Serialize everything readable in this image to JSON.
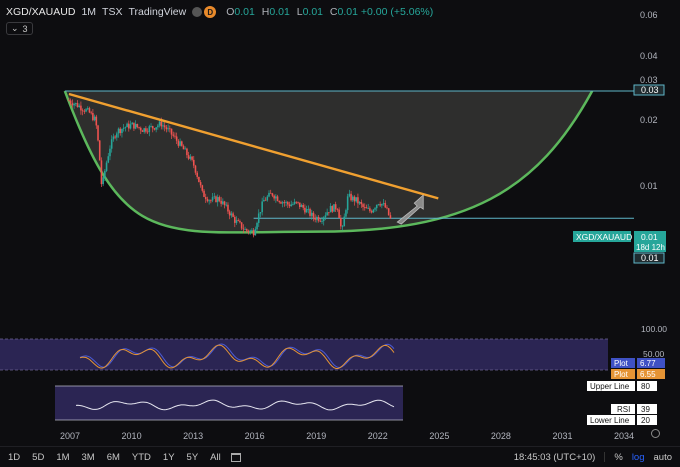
{
  "header": {
    "symbol": "XGD/XAUAUD",
    "interval": "1M",
    "exchange": "TSX",
    "source": "TradingView",
    "badge": "D",
    "ohlc": {
      "o": "0.01",
      "h": "0.01",
      "l": "0.01",
      "c": "0.01",
      "change": "+0.00 (+5.06%)"
    },
    "o_label": "O",
    "h_label": "H",
    "l_label": "L",
    "c_label": "C"
  },
  "indicators_toggle": {
    "chevron": "chevron-down-icon",
    "count": "3"
  },
  "price_axis": {
    "ticks": [
      "0.06",
      "0.04",
      "0.03",
      "0.02",
      "0.01"
    ],
    "tags": {
      "resistance": "0.03",
      "symbol": "XGD/XAUAUD",
      "last_price": "0.01",
      "countdown": "18d 12h",
      "support": "0.01"
    }
  },
  "rsi_axis": {
    "ticks": [
      "100.00",
      "50.00"
    ],
    "plot1_label": "Plot",
    "plot1_value": "6.77",
    "plot2_label": "Plot",
    "plot2_value": "6.55",
    "upper_label": "Upper Line",
    "upper_value": "80",
    "rsi_label": "RSI",
    "rsi_value": "39",
    "lower_label": "Lower Line",
    "lower_value": "20"
  },
  "time_axis": {
    "ticks": [
      {
        "label": "2007",
        "year": 2007
      },
      {
        "label": "2010",
        "year": 2010
      },
      {
        "label": "2013",
        "year": 2013
      },
      {
        "label": "2016",
        "year": 2016
      },
      {
        "label": "2019",
        "year": 2019
      },
      {
        "label": "2022",
        "year": 2022
      },
      {
        "label": "2025",
        "year": 2025
      },
      {
        "label": "2028",
        "year": 2028
      },
      {
        "label": "2031",
        "year": 2031
      },
      {
        "label": "2034",
        "year": 2034
      }
    ]
  },
  "bottom_bar": {
    "timeframes": [
      "1D",
      "5D",
      "1M",
      "3M",
      "6M",
      "YTD",
      "1Y",
      "5Y",
      "All"
    ],
    "calendar_icon": "calendar-icon",
    "clock": "18:45:03 (UTC+10)",
    "percent": "%",
    "log": "log",
    "auto": "auto"
  },
  "colors": {
    "background": "#0d0d10",
    "cup": "#5cb85c",
    "trendline": "#f0a030",
    "level_line": "#5fb6c9",
    "arrow": "#8c8c8c",
    "candle_up": "#26a69a",
    "candle_down": "#ef5350",
    "osc_panel": "#2b2553",
    "rsi_line": "#d0d0e0",
    "plot1": "#3f51c4",
    "plot2": "#e59435"
  },
  "chart_data": {
    "type": "candlestick",
    "timeframe": "1M",
    "y_scale": "log",
    "y_ticks": [
      0.06,
      0.04,
      0.03,
      0.02,
      0.01
    ],
    "x_ticks": [
      2007,
      2010,
      2013,
      2016,
      2019,
      2022,
      2025,
      2028,
      2031,
      2034
    ],
    "price_path": [
      [
        2006.9,
        0.027
      ],
      [
        2007.2,
        0.026
      ],
      [
        2007.5,
        0.025
      ],
      [
        2007.9,
        0.0235
      ],
      [
        2008.2,
        0.0215
      ],
      [
        2008.5,
        0.01
      ],
      [
        2008.9,
        0.016
      ],
      [
        2009.2,
        0.019
      ],
      [
        2009.6,
        0.02
      ],
      [
        2010.0,
        0.0205
      ],
      [
        2010.5,
        0.0195
      ],
      [
        2011.0,
        0.02
      ],
      [
        2011.4,
        0.0208
      ],
      [
        2011.8,
        0.019
      ],
      [
        2012.2,
        0.017
      ],
      [
        2012.6,
        0.015
      ],
      [
        2013.0,
        0.013
      ],
      [
        2013.4,
        0.0095
      ],
      [
        2013.8,
        0.0088
      ],
      [
        2014.2,
        0.009
      ],
      [
        2014.6,
        0.008
      ],
      [
        2015.0,
        0.007
      ],
      [
        2015.5,
        0.0063
      ],
      [
        2015.9,
        0.0062
      ],
      [
        2016.4,
        0.0088
      ],
      [
        2016.8,
        0.0095
      ],
      [
        2017.2,
        0.0088
      ],
      [
        2017.6,
        0.0084
      ],
      [
        2018.0,
        0.0085
      ],
      [
        2018.4,
        0.008
      ],
      [
        2018.8,
        0.0073
      ],
      [
        2019.2,
        0.0072
      ],
      [
        2019.6,
        0.008
      ],
      [
        2020.0,
        0.0082
      ],
      [
        2020.2,
        0.006
      ],
      [
        2020.5,
        0.0092
      ],
      [
        2020.9,
        0.0088
      ],
      [
        2021.3,
        0.008
      ],
      [
        2021.6,
        0.0078
      ],
      [
        2022.0,
        0.0087
      ],
      [
        2022.3,
        0.0082
      ],
      [
        2022.6,
        0.007
      ]
    ],
    "cup_curve": {
      "left": [
        2006.7,
        0.03
      ],
      "bottom": [
        2019.0,
        0.0062
      ],
      "right": [
        2032.4,
        0.03
      ]
    },
    "trendline": {
      "from": [
        2006.9,
        0.029
      ],
      "to": [
        2024.9,
        0.009
      ]
    },
    "resistance_level": 0.03,
    "support_level": 0.0072,
    "rsi": {
      "upper": 80,
      "lower": 20,
      "value": 39
    },
    "oscillator": {
      "plot1": 6.77,
      "plot2": 6.55
    }
  }
}
